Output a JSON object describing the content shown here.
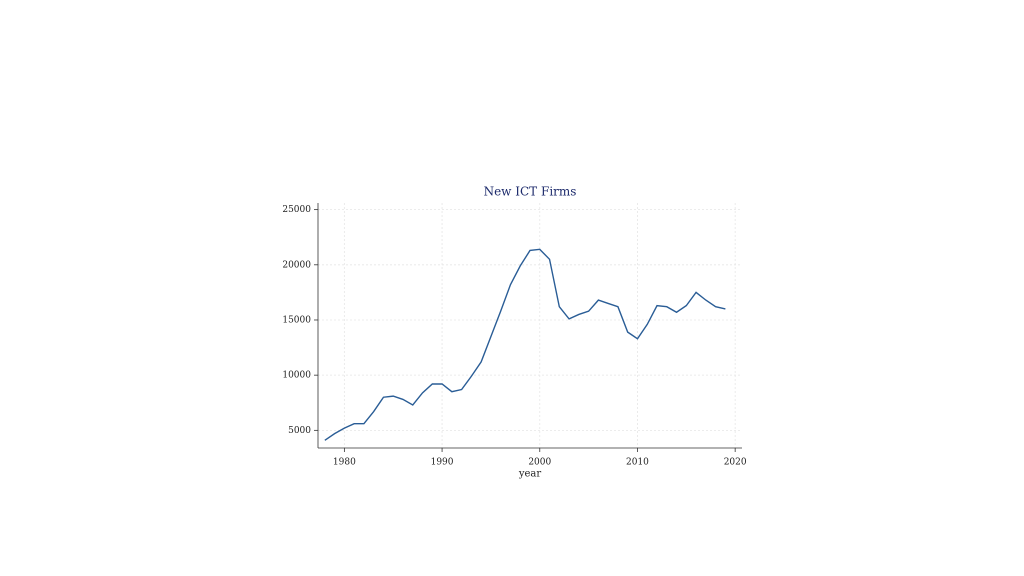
{
  "chart_data": {
    "type": "line",
    "title": "New ICT Firms",
    "x_label": "year",
    "x": [
      1978,
      1979,
      1980,
      1981,
      1982,
      1983,
      1984,
      1985,
      1986,
      1987,
      1988,
      1989,
      1990,
      1991,
      1992,
      1993,
      1994,
      1995,
      1996,
      1997,
      1998,
      1999,
      2000,
      2001,
      2002,
      2003,
      2004,
      2005,
      2006,
      2007,
      2008,
      2009,
      2010,
      2011,
      2012,
      2013,
      2014,
      2015,
      2016,
      2017,
      2018,
      2019
    ],
    "series": [
      {
        "color": "#2a5d96",
        "values": [
          4100,
          4700,
          5200,
          5600,
          5600,
          6700,
          8000,
          8100,
          7800,
          7300,
          8400,
          9200,
          9200,
          8500,
          8700,
          9900,
          11200,
          13500,
          15800,
          18200,
          19900,
          21300,
          21400,
          20500,
          16200,
          15100,
          15500,
          15800,
          16800,
          16500,
          16200,
          13900,
          13300,
          14600,
          16300,
          16200,
          15700,
          16300,
          17500,
          16800,
          16200,
          16000
        ]
      }
    ],
    "xlim": [
      1977.3,
      2020.7
    ],
    "ylim": [
      3400,
      25600
    ],
    "xticks": [
      1980,
      1990,
      2000,
      2010,
      2020
    ],
    "yticks": [
      5000,
      10000,
      15000,
      20000,
      25000
    ],
    "grid": true
  }
}
